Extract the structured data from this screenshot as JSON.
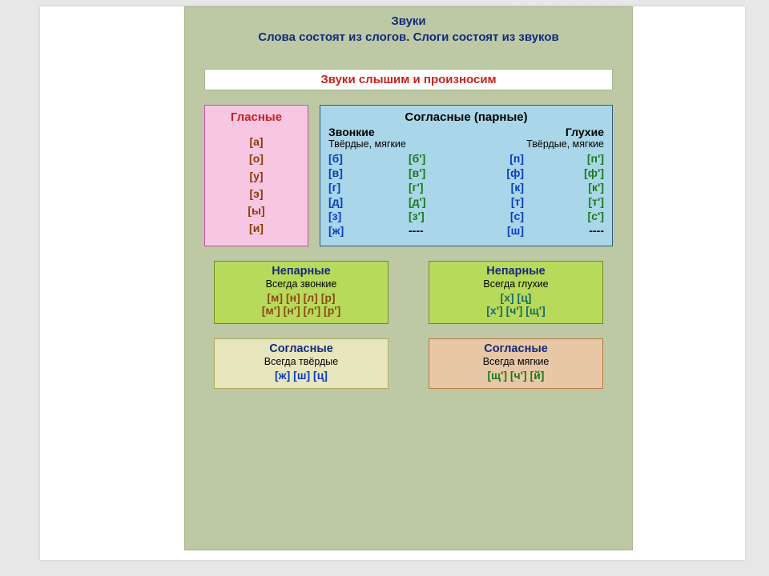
{
  "title_line1": "Звуки",
  "title_line2": "Слова состоят из слогов. Слоги состоят из звуков",
  "bar": "Звуки слышим и произносим",
  "vowels": {
    "title": "Гласные",
    "items": [
      "[а]",
      "[о]",
      "[у]",
      "[э]",
      "[ы]",
      "[и]"
    ]
  },
  "consonants": {
    "title": "Согласные (парные)",
    "left_h": "Звонкие",
    "right_h": "Глухие",
    "sub": "Твёрдые, мягкие",
    "rows": [
      {
        "a": "[б]",
        "b": "[б']",
        "c": "[п]",
        "d": "[п']"
      },
      {
        "a": "[в]",
        "b": "[в']",
        "c": "[ф]",
        "d": "[ф']"
      },
      {
        "a": "[г]",
        "b": "[г']",
        "c": "[к]",
        "d": "[к']"
      },
      {
        "a": "[д]",
        "b": "[д']",
        "c": "[т]",
        "d": "[т']"
      },
      {
        "a": "[з]",
        "b": "[з']",
        "c": "[с]",
        "d": "[с']"
      },
      {
        "a": "[ж]",
        "b": "----",
        "c": "[ш]",
        "d": "----"
      }
    ]
  },
  "unpaired_voiced": {
    "title": "Непарные",
    "sub": "Всегда звонкие",
    "line1": "[м]  [н]  [л]  [р]",
    "line2": "[м'] [н'] [л'] [р']"
  },
  "unpaired_voiceless": {
    "title": "Непарные",
    "sub": "Всегда глухие",
    "line1": "[х]  [ц]",
    "line2": "[х'] [ч'] [щ']"
  },
  "always_hard": {
    "title": "Согласные",
    "sub": "Всегда твёрдые",
    "line": "[ж]  [ш]  [ц]"
  },
  "always_soft": {
    "title": "Согласные",
    "sub": "Всегда мягкие",
    "line": "[щ']  [ч']  [й]"
  },
  "colors": {
    "panel": "#bcc9a4",
    "vowels_bg": "#f7c6e3",
    "cons_bg": "#a9d6e8",
    "unp_bg": "#b8da5a",
    "hard_bg": "#e8e6bc",
    "soft_bg": "#e8c7a6",
    "title_color": "#132b7a",
    "red": "#c62222",
    "blue": "#0a3cc0",
    "green": "#1a7a1a",
    "brown": "#8a4a12",
    "teal": "#1a6a6a"
  }
}
